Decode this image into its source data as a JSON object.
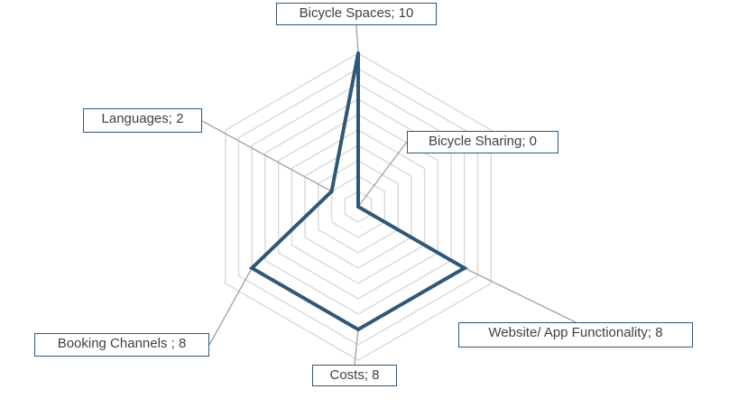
{
  "chart_data": {
    "type": "radar",
    "categories": [
      "Bicycle Spaces",
      "Bicycle Sharing",
      "Website/ App Functionality",
      "Costs",
      "Booking Channels ",
      "Languages"
    ],
    "values": [
      10,
      0,
      8,
      8,
      8,
      2
    ],
    "data_labels": [
      "Bicycle Spaces; 10",
      "Bicycle Sharing; 0",
      "Website/ App Functionality; 8",
      "Costs; 8",
      "Booking Channels ; 8",
      "Languages; 2"
    ],
    "rlim": [
      0,
      10
    ],
    "grid": true,
    "gridlines": 10,
    "legend": "none",
    "colors": {
      "series": "#2f5878",
      "grid": "#d9d9d9",
      "leader": "#a6a6a6",
      "label_border": "#2f5878",
      "text": "#404040"
    }
  }
}
